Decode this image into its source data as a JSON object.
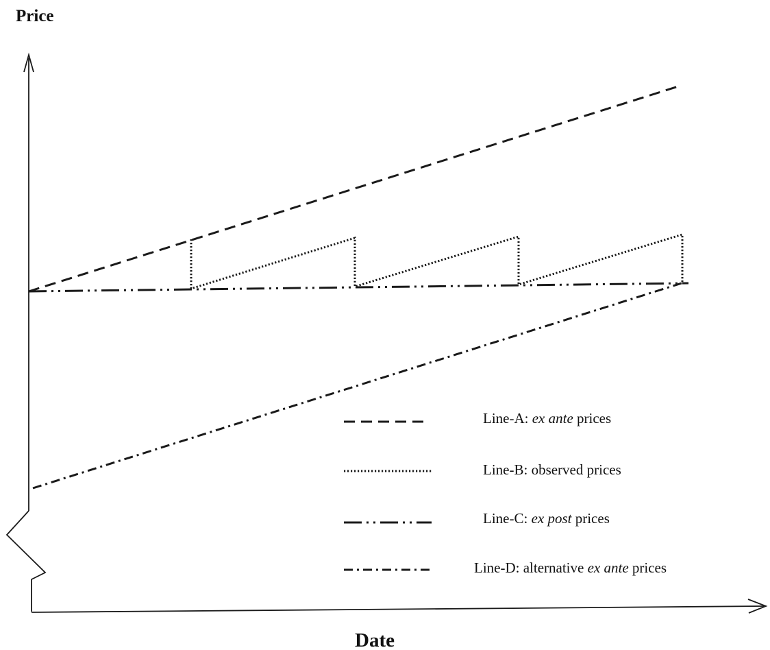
{
  "axes": {
    "y_title": "Price",
    "x_title": "Date"
  },
  "lines": [
    {
      "id": "A",
      "style": "dashed"
    },
    {
      "id": "B",
      "style": "dotted"
    },
    {
      "id": "C",
      "style": "dash-dot-dot"
    },
    {
      "id": "D",
      "style": "dash-dot"
    }
  ],
  "legend": [
    {
      "id": "A",
      "prefix": "Line-A: ",
      "italic": "ex ante",
      "suffix": " prices"
    },
    {
      "id": "B",
      "prefix": "Line-B: observed prices",
      "italic": "",
      "suffix": ""
    },
    {
      "id": "C",
      "prefix": "Line-C: ",
      "italic": "ex post",
      "suffix": " prices"
    },
    {
      "id": "D",
      "prefix": "Line-D: alternative ",
      "italic": "ex ante",
      "suffix": " prices"
    }
  ],
  "colors": {
    "ink": "#1a1a1a",
    "background": "#ffffff"
  }
}
